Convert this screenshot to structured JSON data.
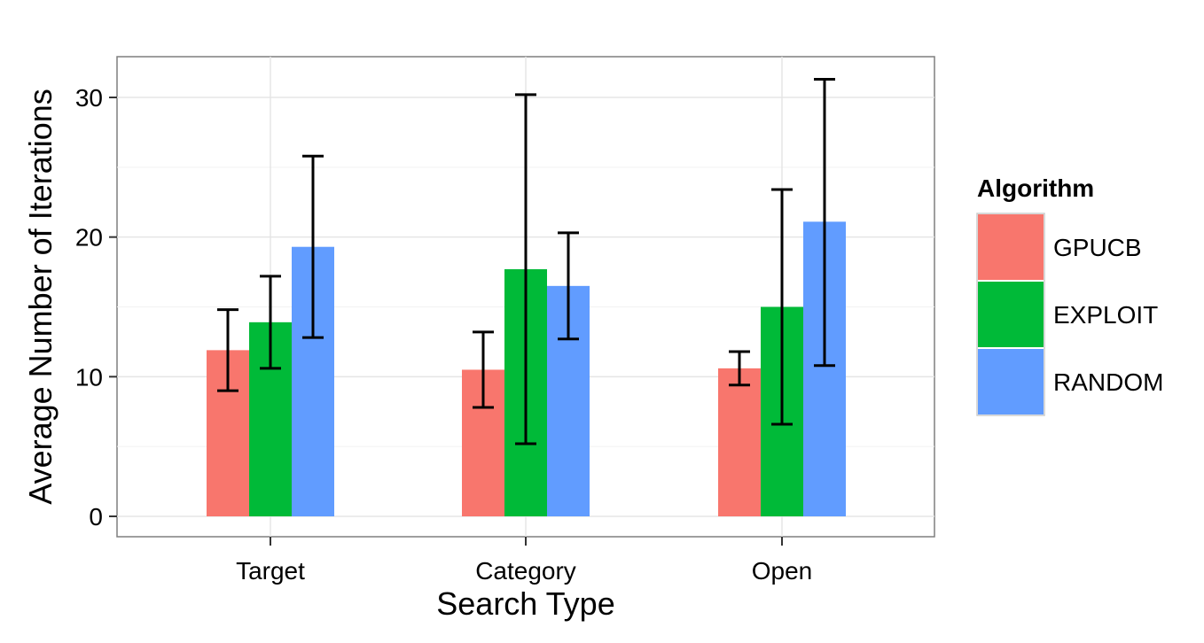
{
  "chart_data": {
    "type": "bar",
    "xlabel": "Search Type",
    "ylabel": "Average Number of Iterations",
    "categories": [
      "Target",
      "Category",
      "Open"
    ],
    "y_ticks": [
      0,
      10,
      20,
      30
    ],
    "ylim": [
      -1.5,
      33
    ],
    "grid": true,
    "legend": {
      "title": "Algorithm",
      "placement": "right"
    },
    "series": [
      {
        "name": "GPUCB",
        "color": "#F8766D",
        "values": [
          11.9,
          10.5,
          10.6
        ],
        "err_low": [
          9.0,
          7.8,
          9.4
        ],
        "err_high": [
          14.8,
          13.2,
          11.8
        ]
      },
      {
        "name": "EXPLOIT",
        "color": "#00BA38",
        "values": [
          13.9,
          17.7,
          15.0
        ],
        "err_low": [
          10.6,
          5.2,
          6.6
        ],
        "err_high": [
          17.2,
          30.2,
          23.4
        ]
      },
      {
        "name": "RANDOM",
        "color": "#619CFF",
        "values": [
          19.3,
          16.5,
          21.1
        ],
        "err_low": [
          12.8,
          12.7,
          10.8
        ],
        "err_high": [
          25.8,
          20.3,
          31.3
        ]
      }
    ]
  }
}
